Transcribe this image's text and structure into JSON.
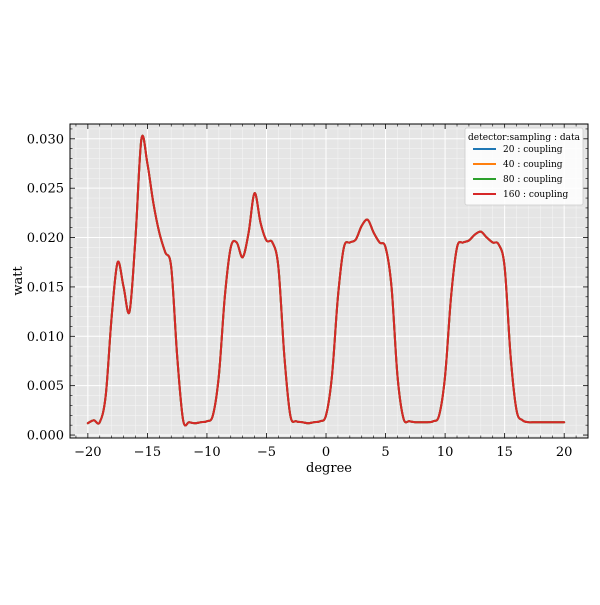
{
  "chart_data": {
    "type": "line",
    "title": "",
    "xlabel": "degree",
    "ylabel": "watt",
    "xlim": [
      -21.5,
      22
    ],
    "ylim": [
      -0.0003,
      0.0315
    ],
    "xticks": [
      -20,
      -15,
      -10,
      -5,
      0,
      5,
      10,
      15,
      20
    ],
    "xtick_labels": [
      "−20",
      "−15",
      "−10",
      "−5",
      "0",
      "5",
      "10",
      "15",
      "20"
    ],
    "yticks": [
      0.0,
      0.005,
      0.01,
      0.015,
      0.02,
      0.025,
      0.03
    ],
    "ytick_labels": [
      "0.000",
      "0.005",
      "0.010",
      "0.015",
      "0.020",
      "0.025",
      "0.030"
    ],
    "grid": true,
    "background": "#e5e5e5",
    "legend": {
      "title": "detector:sampling : data",
      "placement": "top-right",
      "entries": [
        {
          "label": "20 : coupling",
          "color": "#1f77b4"
        },
        {
          "label": "40 : coupling",
          "color": "#ff7f0e"
        },
        {
          "label": "80 : coupling",
          "color": "#2ca02c"
        },
        {
          "label": "160 : coupling",
          "color": "#d62728"
        }
      ]
    },
    "x": [
      -20,
      -19.5,
      -19,
      -18.5,
      -18,
      -17.5,
      -17,
      -16.5,
      -16,
      -15.5,
      -15,
      -14.5,
      -14,
      -13.5,
      -13,
      -12.5,
      -12,
      -11.5,
      -11,
      -10.5,
      -10,
      -9.5,
      -9,
      -8.5,
      -8,
      -7.5,
      -7,
      -6.5,
      -6,
      -5.5,
      -5,
      -4.5,
      -4,
      -3.5,
      -3,
      -2.5,
      -2,
      -1.5,
      -1,
      -0.5,
      0,
      0.5,
      1,
      1.5,
      2,
      2.5,
      3,
      3.5,
      4,
      4.5,
      5,
      5.5,
      6,
      6.5,
      7,
      7.5,
      8,
      8.5,
      9,
      9.5,
      10,
      10.5,
      11,
      11.5,
      12,
      12.5,
      13,
      13.5,
      14,
      14.5,
      15,
      15.5,
      16,
      16.5,
      17,
      17.5,
      18,
      18.5,
      19,
      19.5,
      20
    ],
    "series": [
      {
        "name": "20 : coupling",
        "color": "#1f77b4",
        "values": [
          0.0012,
          0.0015,
          0.0013,
          0.004,
          0.012,
          0.0175,
          0.015,
          0.0125,
          0.02,
          0.03,
          0.0275,
          0.0235,
          0.0205,
          0.0185,
          0.017,
          0.008,
          0.0015,
          0.0013,
          0.0012,
          0.0013,
          0.0014,
          0.002,
          0.006,
          0.014,
          0.019,
          0.0195,
          0.018,
          0.0205,
          0.0245,
          0.0215,
          0.0197,
          0.0195,
          0.017,
          0.008,
          0.002,
          0.0014,
          0.0013,
          0.0012,
          0.0013,
          0.0014,
          0.002,
          0.006,
          0.014,
          0.019,
          0.0195,
          0.0198,
          0.0212,
          0.0218,
          0.0205,
          0.0195,
          0.019,
          0.015,
          0.006,
          0.0017,
          0.0014,
          0.0013,
          0.0013,
          0.0013,
          0.0014,
          0.002,
          0.006,
          0.014,
          0.019,
          0.0195,
          0.0197,
          0.0203,
          0.0206,
          0.02,
          0.0195,
          0.0193,
          0.017,
          0.008,
          0.0025,
          0.0015,
          0.0013,
          0.0013,
          0.0013,
          0.0013,
          0.0013,
          0.0013,
          0.0013
        ]
      },
      {
        "name": "40 : coupling",
        "color": "#ff7f0e",
        "values": [
          0.0012,
          0.0015,
          0.0013,
          0.004,
          0.012,
          0.0175,
          0.015,
          0.0125,
          0.02,
          0.03,
          0.0275,
          0.0235,
          0.0205,
          0.0185,
          0.017,
          0.008,
          0.0015,
          0.0013,
          0.0012,
          0.0013,
          0.0014,
          0.002,
          0.006,
          0.014,
          0.019,
          0.0195,
          0.018,
          0.0205,
          0.0245,
          0.0215,
          0.0197,
          0.0195,
          0.017,
          0.008,
          0.002,
          0.0014,
          0.0013,
          0.0012,
          0.0013,
          0.0014,
          0.002,
          0.006,
          0.014,
          0.019,
          0.0195,
          0.0198,
          0.0212,
          0.0218,
          0.0205,
          0.0195,
          0.019,
          0.015,
          0.006,
          0.0017,
          0.0014,
          0.0013,
          0.0013,
          0.0013,
          0.0014,
          0.002,
          0.006,
          0.014,
          0.019,
          0.0195,
          0.0197,
          0.0203,
          0.0206,
          0.02,
          0.0195,
          0.0193,
          0.017,
          0.008,
          0.0025,
          0.0015,
          0.0013,
          0.0013,
          0.0013,
          0.0013,
          0.0013,
          0.0013,
          0.0013
        ]
      },
      {
        "name": "80 : coupling",
        "color": "#2ca02c",
        "values": [
          0.0012,
          0.0015,
          0.0013,
          0.004,
          0.012,
          0.0175,
          0.015,
          0.0125,
          0.02,
          0.03,
          0.0275,
          0.0235,
          0.0205,
          0.0185,
          0.017,
          0.008,
          0.0015,
          0.0013,
          0.0012,
          0.0013,
          0.0014,
          0.002,
          0.006,
          0.014,
          0.019,
          0.0195,
          0.018,
          0.0205,
          0.0245,
          0.0215,
          0.0197,
          0.0195,
          0.017,
          0.008,
          0.002,
          0.0014,
          0.0013,
          0.0012,
          0.0013,
          0.0014,
          0.002,
          0.006,
          0.014,
          0.019,
          0.0195,
          0.0198,
          0.0212,
          0.0218,
          0.0205,
          0.0195,
          0.019,
          0.015,
          0.006,
          0.0017,
          0.0014,
          0.0013,
          0.0013,
          0.0013,
          0.0014,
          0.002,
          0.006,
          0.014,
          0.019,
          0.0195,
          0.0197,
          0.0203,
          0.0206,
          0.02,
          0.0195,
          0.0193,
          0.017,
          0.008,
          0.0025,
          0.0015,
          0.0013,
          0.0013,
          0.0013,
          0.0013,
          0.0013,
          0.0013,
          0.0013
        ]
      },
      {
        "name": "160 : coupling",
        "color": "#d62728",
        "values": [
          0.0012,
          0.0015,
          0.0013,
          0.004,
          0.012,
          0.0175,
          0.015,
          0.0125,
          0.02,
          0.03,
          0.0275,
          0.0235,
          0.0205,
          0.0185,
          0.017,
          0.008,
          0.0015,
          0.0013,
          0.0012,
          0.0013,
          0.0014,
          0.002,
          0.006,
          0.014,
          0.019,
          0.0195,
          0.018,
          0.0205,
          0.0245,
          0.0215,
          0.0197,
          0.0195,
          0.017,
          0.008,
          0.002,
          0.0014,
          0.0013,
          0.0012,
          0.0013,
          0.0014,
          0.002,
          0.006,
          0.014,
          0.019,
          0.0195,
          0.0198,
          0.0212,
          0.0218,
          0.0205,
          0.0195,
          0.019,
          0.015,
          0.006,
          0.0017,
          0.0014,
          0.0013,
          0.0013,
          0.0013,
          0.0014,
          0.002,
          0.006,
          0.014,
          0.019,
          0.0195,
          0.0197,
          0.0203,
          0.0206,
          0.02,
          0.0195,
          0.0193,
          0.017,
          0.008,
          0.0025,
          0.0015,
          0.0013,
          0.0013,
          0.0013,
          0.0013,
          0.0013,
          0.0013,
          0.0013
        ]
      }
    ]
  }
}
